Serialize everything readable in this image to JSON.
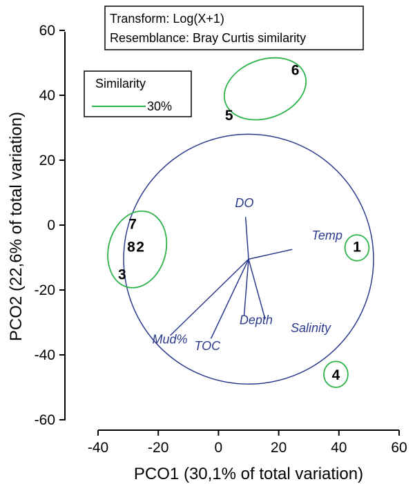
{
  "chart_data": {
    "type": "scatter",
    "xlabel": "PCO1 (30,1% of total variation)",
    "ylabel": "PCO2 (22,6% of total variation)",
    "xlim": [
      -40,
      60
    ],
    "ylim": [
      -60,
      60
    ],
    "x_ticks": [
      "-40",
      "-20",
      "0",
      "20",
      "40",
      "60"
    ],
    "y_ticks": [
      "-60",
      "-40",
      "-20",
      "0",
      "20",
      "40",
      "60"
    ],
    "x_tick_values": [
      -40,
      -20,
      0,
      20,
      40,
      60
    ],
    "y_tick_values": [
      -60,
      -40,
      -20,
      0,
      20,
      40,
      60
    ],
    "points": [
      {
        "label": "1",
        "x": 46,
        "y": -6.5
      },
      {
        "label": "2",
        "x": -26,
        "y": -6.5
      },
      {
        "label": "3",
        "x": -32,
        "y": -15
      },
      {
        "label": "4",
        "x": 39,
        "y": -46
      },
      {
        "label": "5",
        "x": 3.5,
        "y": 34
      },
      {
        "label": "6",
        "x": 25.5,
        "y": 48
      },
      {
        "label": "7",
        "x": -28.5,
        "y": 0.5
      },
      {
        "label": "8",
        "x": -29,
        "y": -6.5
      }
    ],
    "vector_origin": {
      "x": 10,
      "y": -10.5
    },
    "correlation_circle_radius": 41.5,
    "vectors": [
      {
        "name": "DO",
        "x": 9,
        "y": 2.5
      },
      {
        "name": "Temp",
        "x": 24.5,
        "y": -7.5
      },
      {
        "name": "Salinity",
        "x": 15.5,
        "y": -29
      },
      {
        "name": "Depth",
        "x": 8.5,
        "y": -28
      },
      {
        "name": "TOC",
        "x": -2.5,
        "y": -35
      },
      {
        "name": "Mud%",
        "x": -16,
        "y": -34
      }
    ],
    "vector_label_pos": {
      "DO": {
        "x": 5.5,
        "y": 5.5
      },
      "Temp": {
        "x": 31,
        "y": -4.5
      },
      "Salinity": {
        "x": 24,
        "y": -33
      },
      "Depth": {
        "x": 7,
        "y": -30.5
      },
      "TOC": {
        "x": -8,
        "y": -38.5
      },
      "Mud%": {
        "x": -22,
        "y": -36.5
      }
    },
    "similarity_groups": [
      {
        "members": [
          "5",
          "6"
        ],
        "cx": 15.5,
        "cy": 42,
        "rx": 14,
        "ry": 9,
        "rotate": -20
      },
      {
        "members": [
          "2",
          "3",
          "7",
          "8"
        ],
        "cx": -27,
        "cy": -7.5,
        "rx": 9.5,
        "ry": 12,
        "rotate": 15
      },
      {
        "members": [
          "1"
        ],
        "cx": 46,
        "cy": -7,
        "rx": 4,
        "ry": 4,
        "rotate": 0
      },
      {
        "members": [
          "4"
        ],
        "cx": 39,
        "cy": -46,
        "rx": 4,
        "ry": 4,
        "rotate": 0
      }
    ],
    "legend": {
      "title": "Similarity",
      "entries": [
        {
          "label": "30%",
          "color": "#2db34a"
        }
      ],
      "placement": "top-left"
    },
    "info_box": {
      "line1": "Transform: Log(X+1)",
      "line2": "Resemblance: Bray Curtis similarity"
    },
    "colors": {
      "vector": "#2b3a8c",
      "circle": "#2b3a8c",
      "group_ellipse": "#2db34a",
      "axis": "#000000"
    }
  }
}
